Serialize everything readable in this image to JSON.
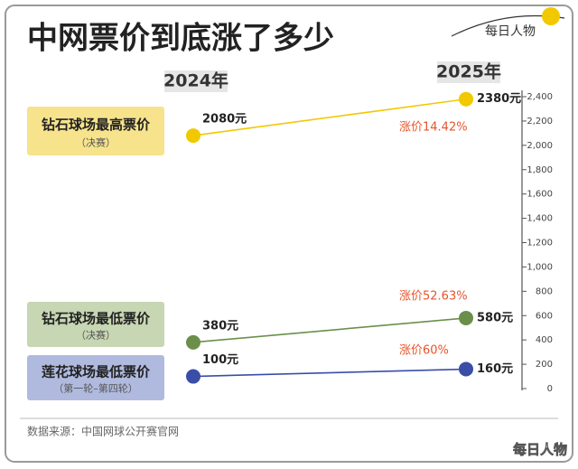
{
  "brand": "每日人物",
  "source": "数据来源：中国网球公开赛官网",
  "chart_data": {
    "type": "slope",
    "title": "中网票价到底涨了多少",
    "categories": [
      "2024年",
      "2025年"
    ],
    "ylim": [
      0,
      2400
    ],
    "yticks": [
      0,
      200,
      400,
      600,
      800,
      {
        "value": 1000,
        "label": "1,000"
      },
      {
        "value": 1200,
        "label": "1,200"
      },
      {
        "value": 1400,
        "label": "1,400"
      },
      {
        "value": 1600,
        "label": "1,600"
      },
      {
        "value": 1800,
        "label": "1,800"
      },
      {
        "value": 2000,
        "label": "2,000"
      },
      {
        "value": 2200,
        "label": "2,200"
      },
      {
        "value": 2400,
        "label": "2,400"
      }
    ],
    "series": [
      {
        "name": "钻石球场最高票价",
        "subtitle": "（决赛）",
        "color": "#f2c800",
        "box_color": "#f6e38c",
        "values": [
          2080,
          2380
        ],
        "value_labels": [
          "2080元",
          "2380元"
        ],
        "change_label": "涨价14.42%"
      },
      {
        "name": "钻石球场最低票价",
        "subtitle": "（决赛）",
        "color": "#6b8f4b",
        "box_color": "#c7d6b3",
        "values": [
          380,
          580
        ],
        "value_labels": [
          "380元",
          "580元"
        ],
        "change_label": "涨价52.63%"
      },
      {
        "name": "莲花球场最低票价",
        "subtitle": "（第一轮–第四轮）",
        "color": "#3a4ea8",
        "box_color": "#b0badf",
        "values": [
          100,
          160
        ],
        "value_labels": [
          "100元",
          "160元"
        ],
        "change_label": "涨价60%"
      }
    ]
  }
}
